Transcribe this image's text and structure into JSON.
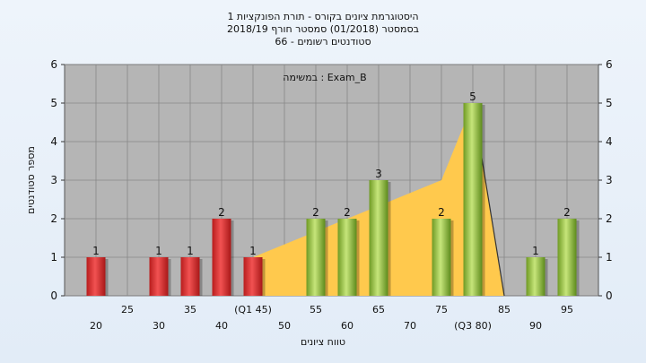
{
  "chart_data": {
    "type": "bar",
    "title_lines": [
      "היסטוגרמת ציונים בקורס - תורת הפונקציות 1",
      "בסמסטר  (01/2018)  סמסטר חורף 2018/19",
      "סטודנטים רשומים - 66"
    ],
    "annotation": "במשימה : Exam_B",
    "xlabel": "טווח ציונים",
    "ylabel": "מספר סטודנטים",
    "ylim": [
      0,
      6
    ],
    "yticks": [
      0,
      1,
      2,
      3,
      4,
      5,
      6
    ],
    "grid": true,
    "x_tick_labels": [
      "20",
      "25",
      "30",
      "35",
      "40",
      "(Q1 45)",
      "50",
      "55",
      "60",
      "65",
      "70",
      "75",
      "(Q3 80)",
      "85",
      "90",
      "95"
    ],
    "categories": [
      "20",
      "30",
      "35",
      "40",
      "45",
      "55",
      "60",
      "65",
      "75",
      "80",
      "90",
      "95"
    ],
    "values": [
      1,
      1,
      1,
      2,
      1,
      2,
      2,
      3,
      2,
      5,
      1,
      2
    ],
    "bar_colors": [
      "#e03131",
      "#e03131",
      "#e03131",
      "#e03131",
      "#e03131",
      "#8fbf3c",
      "#8fbf3c",
      "#8fbf3c",
      "#8fbf3c",
      "#8fbf3c",
      "#8fbf3c",
      "#8fbf3c"
    ],
    "data_labels": [
      "1",
      "1",
      "1",
      "2",
      "1",
      "2",
      "2",
      "3",
      "2",
      "5",
      "1",
      "2"
    ],
    "quartile_area": {
      "x": [
        45,
        75,
        80,
        85
      ],
      "y": [
        1,
        3,
        5,
        0
      ],
      "color": "#ffc94d"
    },
    "plot_background": "#b5b5b5"
  }
}
